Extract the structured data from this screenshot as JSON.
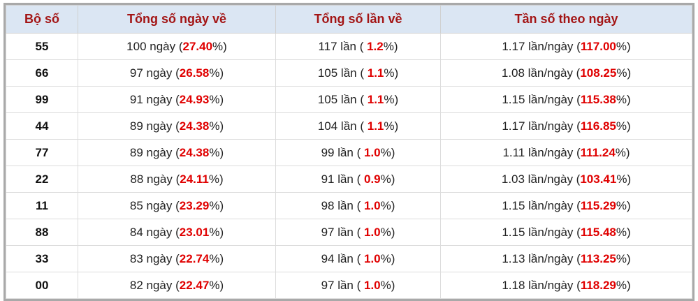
{
  "table": {
    "header": [
      "Bộ số",
      "Tổng số ngày về",
      "Tổng số lần về",
      "Tần số theo ngày"
    ],
    "rows": [
      [
        "55",
        [
          "100 ngày (",
          "27.40",
          "%)"
        ],
        [
          "117 lần ( ",
          "1.2",
          "%)"
        ],
        [
          "1.17 lần/ngày (",
          "117.00",
          "%)"
        ]
      ],
      [
        "66",
        [
          "97 ngày (",
          "26.58",
          "%)"
        ],
        [
          "105 lần ( ",
          "1.1",
          "%)"
        ],
        [
          "1.08 lần/ngày (",
          "108.25",
          "%)"
        ]
      ],
      [
        "99",
        [
          "91 ngày (",
          "24.93",
          "%)"
        ],
        [
          "105 lần ( ",
          "1.1",
          "%)"
        ],
        [
          "1.15 lần/ngày (",
          "115.38",
          "%)"
        ]
      ],
      [
        "44",
        [
          "89 ngày (",
          "24.38",
          "%)"
        ],
        [
          "104 lần ( ",
          "1.1",
          "%)"
        ],
        [
          "1.17 lần/ngày (",
          "116.85",
          "%)"
        ]
      ],
      [
        "77",
        [
          "89 ngày (",
          "24.38",
          "%)"
        ],
        [
          "99 lần ( ",
          "1.0",
          "%)"
        ],
        [
          "1.11 lần/ngày (",
          "111.24",
          "%)"
        ]
      ],
      [
        "22",
        [
          "88 ngày (",
          "24.11",
          "%)"
        ],
        [
          "91 lần ( ",
          "0.9",
          "%)"
        ],
        [
          "1.03 lần/ngày (",
          "103.41",
          "%)"
        ]
      ],
      [
        "11",
        [
          "85 ngày (",
          "23.29",
          "%)"
        ],
        [
          "98 lần ( ",
          "1.0",
          "%)"
        ],
        [
          "1.15 lần/ngày (",
          "115.29",
          "%)"
        ]
      ],
      [
        "88",
        [
          "84 ngày (",
          "23.01",
          "%)"
        ],
        [
          "97 lần ( ",
          "1.0",
          "%)"
        ],
        [
          "1.15 lần/ngày (",
          "115.48",
          "%)"
        ]
      ],
      [
        "33",
        [
          "83 ngày (",
          "22.74",
          "%)"
        ],
        [
          "94 lần ( ",
          "1.0",
          "%)"
        ],
        [
          "1.13 lần/ngày (",
          "113.25",
          "%)"
        ]
      ],
      [
        "00",
        [
          "82 ngày (",
          "22.47",
          "%)"
        ],
        [
          "97 lần ( ",
          "1.0",
          "%)"
        ],
        [
          "1.18 lần/ngày (",
          "118.29",
          "%)"
        ]
      ]
    ]
  }
}
